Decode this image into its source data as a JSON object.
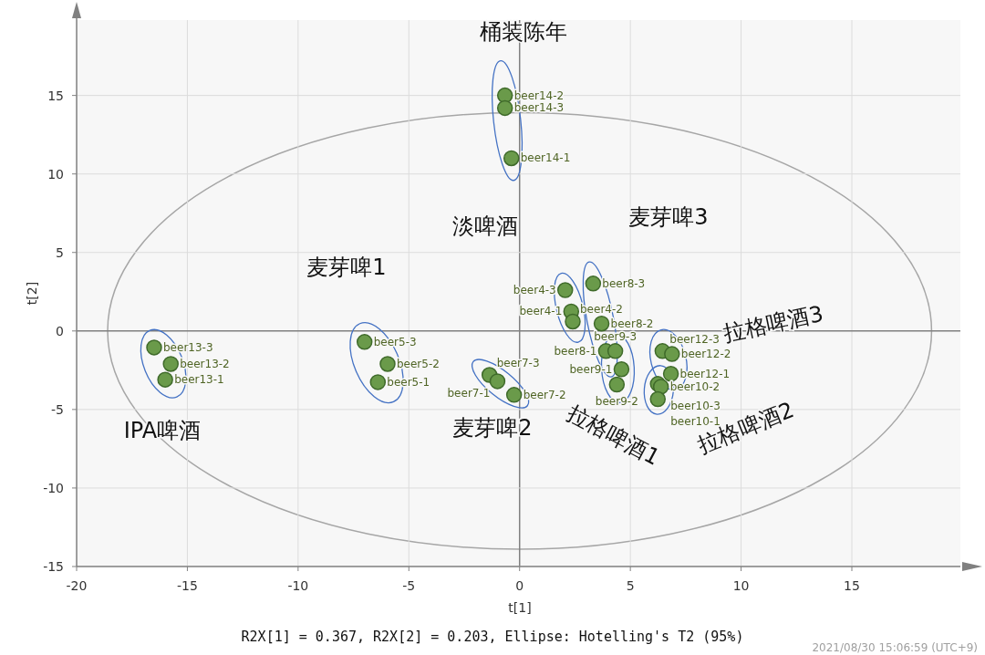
{
  "chart_data": {
    "type": "scatter",
    "xlabel": "t[1]",
    "ylabel": "t[2]",
    "xlim": [
      -20,
      19.9
    ],
    "ylim": [
      -15,
      19.8
    ],
    "xticks": [
      -20,
      -15,
      -10,
      -5,
      0,
      5,
      10,
      15
    ],
    "yticks": [
      -15,
      -10,
      -5,
      0,
      5,
      10,
      15
    ],
    "grid": true,
    "marker": "circle",
    "series": [
      {
        "type": "scatter",
        "color": "#6a9a4a",
        "x": [
          -16.5,
          -15.75,
          -16.0,
          -7.0,
          -5.96,
          -6.4,
          -1.36,
          -1.0,
          -0.25,
          -0.66,
          -0.66,
          -0.37,
          2.06,
          2.33,
          2.4,
          3.32,
          3.7,
          3.9,
          4.32,
          4.6,
          4.39,
          6.45,
          6.88,
          6.83,
          6.24,
          6.38,
          6.24
        ],
        "values": [
          -1.05,
          -2.1,
          -3.1,
          -0.7,
          -2.1,
          -3.26,
          -2.8,
          -3.2,
          -4.07,
          15.0,
          14.2,
          11.0,
          2.6,
          1.24,
          0.6,
          3.02,
          0.47,
          -1.28,
          -1.28,
          -2.44,
          -3.41,
          -1.28,
          -1.47,
          -2.73,
          -3.37,
          -3.55,
          -4.34
        ],
        "value_labels": [
          "beer13-3",
          "beer13-2",
          "beer13-1",
          "beer5-3",
          "beer5-2",
          "beer5-1",
          "beer7-3",
          "beer7-1",
          "beer7-2",
          "beer14-2",
          "beer14-3",
          "beer14-1",
          "beer4-3",
          "beer4-1",
          "beer4-2",
          "beer8-3",
          "beer8-2",
          "beer8-1",
          "beer9-3",
          "beer9-1",
          "beer9-2",
          "beer12-3",
          "beer12-2",
          "beer12-1",
          "beer10-3",
          "beer10-2",
          "beer10-1"
        ]
      }
    ],
    "annotations": [
      "桶装陈年",
      "淡啤酒",
      "麦芽啤3",
      "麦芽啤1",
      "麦芽啤2",
      "IPA啤酒",
      "拉格啤酒1",
      "拉格啤酒2",
      "拉格啤酒3",
      "R2X[1] = 0.367, R2X[2] = 0.203, Ellipse: Hotelling's T2 (95%)",
      "2021/08/30 15:06:59 (UTC+9)"
    ]
  }
}
